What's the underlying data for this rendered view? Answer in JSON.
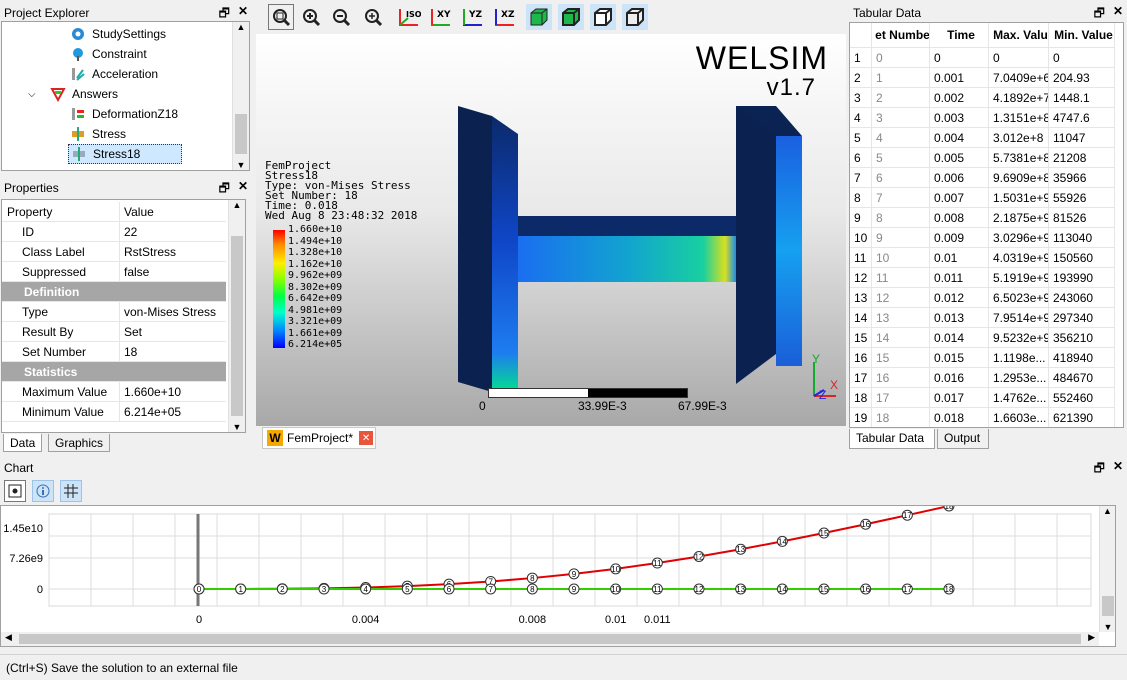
{
  "project_explorer": {
    "title": "Project Explorer",
    "items": [
      {
        "label": "StudySettings",
        "icon": "gear-icon"
      },
      {
        "label": "Constraint",
        "icon": "constraint-icon"
      },
      {
        "label": "Acceleration",
        "icon": "acceleration-icon"
      },
      {
        "label": "Answers",
        "icon": "answers-icon"
      },
      {
        "label": "DeformationZ18",
        "icon": "deformation-icon"
      },
      {
        "label": "Stress",
        "icon": "stress-icon"
      },
      {
        "label": "Stress18",
        "icon": "stress-icon"
      }
    ]
  },
  "properties": {
    "title": "Properties",
    "col_property": "Property",
    "col_value": "Value",
    "rows": [
      {
        "k": "ID",
        "v": "22"
      },
      {
        "k": "Class Label",
        "v": "RstStress"
      },
      {
        "k": "Suppressed",
        "v": "false"
      },
      {
        "k": "Definition",
        "v": "",
        "section": true
      },
      {
        "k": "Type",
        "v": "von-Mises Stress"
      },
      {
        "k": "Result By",
        "v": "Set"
      },
      {
        "k": "Set Number",
        "v": "18"
      },
      {
        "k": "Statistics",
        "v": "",
        "section": true
      },
      {
        "k": "Maximum Value",
        "v": "1.660e+10"
      },
      {
        "k": "Minimum Value",
        "v": "6.214e+05"
      }
    ],
    "tabs": [
      "Data",
      "Graphics"
    ]
  },
  "viewport": {
    "toolbar": [
      "zoom-box",
      "zoom-in",
      "zoom-out",
      "zoom-fit",
      "ISO",
      "XY",
      "YZ",
      "XZ",
      "solid",
      "wire-solid",
      "wireframe",
      "transparent"
    ],
    "brand": "WELSIM",
    "version": "v1.7",
    "info": [
      "FemProject",
      "Stress18",
      "Type: von-Mises Stress",
      "Set Number: 18",
      "Time: 0.018",
      "Wed Aug 8 23:48:32 2018"
    ],
    "legend": [
      "1.660e+10",
      "1.494e+10",
      "1.328e+10",
      "1.162e+10",
      "9.962e+09",
      "8.302e+09",
      "6.642e+09",
      "4.981e+09",
      "3.321e+09",
      "1.661e+09",
      "6.214e+05"
    ],
    "legend_colors": [
      "#ff0000",
      "#ff4d00",
      "#ff9900",
      "#ffe600",
      "#ccff00",
      "#80ff00",
      "#00ff33",
      "#00ffaa",
      "#00ccff",
      "#0066ff",
      "#0000ff"
    ],
    "scale_labels": [
      "0",
      "33.99E-3",
      "67.99E-3"
    ],
    "axes": {
      "y": "Y",
      "x": "X",
      "z": "Z"
    },
    "doc_tab": "FemProject*"
  },
  "tabular": {
    "title": "Tabular Data",
    "headers": [
      "et Numbe",
      "Time",
      "Max. Valu",
      "Min. Value"
    ],
    "rows": [
      [
        "1",
        "0",
        "0",
        "0",
        "0"
      ],
      [
        "2",
        "1",
        "0.001",
        "7.0409e+6",
        "204.93"
      ],
      [
        "3",
        "2",
        "0.002",
        "4.1892e+7",
        "1448.1"
      ],
      [
        "4",
        "3",
        "0.003",
        "1.3151e+8",
        "4747.6"
      ],
      [
        "5",
        "4",
        "0.004",
        "3.012e+8",
        "11047"
      ],
      [
        "6",
        "5",
        "0.005",
        "5.7381e+8",
        "21208"
      ],
      [
        "7",
        "6",
        "0.006",
        "9.6909e+8",
        "35966"
      ],
      [
        "8",
        "7",
        "0.007",
        "1.5031e+9",
        "55926"
      ],
      [
        "9",
        "8",
        "0.008",
        "2.1875e+9",
        "81526"
      ],
      [
        "10",
        "9",
        "0.009",
        "3.0296e+9",
        "113040"
      ],
      [
        "11",
        "10",
        "0.01",
        "4.0319e+9",
        "150560"
      ],
      [
        "12",
        "11",
        "0.011",
        "5.1919e+9",
        "193990"
      ],
      [
        "13",
        "12",
        "0.012",
        "6.5023e+9",
        "243060"
      ],
      [
        "14",
        "13",
        "0.013",
        "7.9514e+9",
        "297340"
      ],
      [
        "15",
        "14",
        "0.014",
        "9.5232e+9",
        "356210"
      ],
      [
        "16",
        "15",
        "0.015",
        "1.1198e...",
        "418940"
      ],
      [
        "17",
        "16",
        "0.016",
        "1.2953e...",
        "484670"
      ],
      [
        "18",
        "17",
        "0.017",
        "1.4762e...",
        "552460"
      ],
      [
        "19",
        "18",
        "0.018",
        "1.6603e...",
        "621390"
      ]
    ],
    "tabs": [
      "Tabular Data",
      "Output"
    ]
  },
  "chart": {
    "title": "Chart",
    "tools": [
      "select-icon",
      "info-icon",
      "grid-icon"
    ]
  },
  "chart_data": {
    "type": "line",
    "x": [
      0,
      0.001,
      0.002,
      0.003,
      0.004,
      0.005,
      0.006,
      0.007,
      0.008,
      0.009,
      0.01,
      0.011,
      0.012,
      0.013,
      0.014,
      0.015,
      0.016,
      0.017,
      0.018
    ],
    "point_labels": [
      "0",
      "1",
      "2",
      "3",
      "4",
      "5",
      "6",
      "7",
      "8",
      "9",
      "10",
      "11",
      "12",
      "13",
      "14",
      "15",
      "16",
      "17",
      "18"
    ],
    "series": [
      {
        "color": "#e00000",
        "values": [
          0,
          7040900.0,
          41892000.0,
          131510000.0,
          301200000.0,
          573810000.0,
          969090000.0,
          1503100000.0,
          2187500000.0,
          3029600000.0,
          4031900000.0,
          5191900000.0,
          6502300000.0,
          7951400000.0,
          9523200000.0,
          11198000000.0,
          12953000000.0,
          14762000000.0,
          16603000000.0
        ]
      },
      {
        "color": "#33cc00",
        "values": [
          0,
          204.93,
          1448.1,
          4747.6,
          11047,
          21208,
          35966,
          55926,
          81526,
          113040,
          150560,
          193990,
          243060,
          297340,
          356210,
          418940,
          484670,
          552460,
          621390
        ]
      }
    ],
    "y_ticks": [
      "1.45e10",
      "7.26e9",
      "0"
    ],
    "x_ticks": [
      "0",
      "0.004",
      "0.008",
      "0.01",
      "0.011"
    ],
    "ylim": [
      0,
      18000000000.0
    ],
    "xlim": [
      0,
      0.018
    ],
    "grid": true
  },
  "status": {
    "text": "(Ctrl+S) Save the solution to an external file"
  }
}
